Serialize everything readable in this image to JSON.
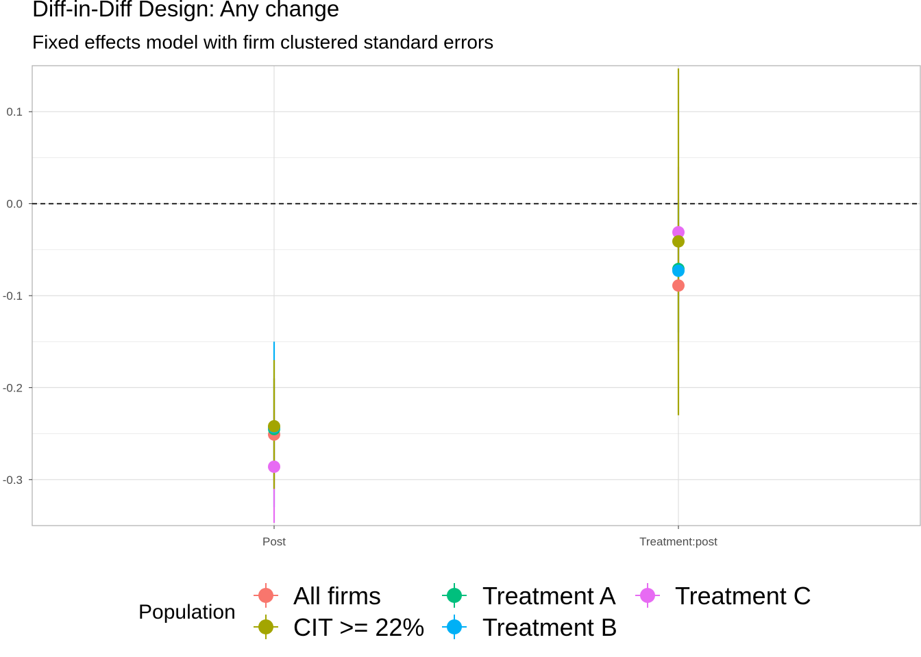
{
  "title": "Diff-in-Diff Design: Any change",
  "subtitle": "Fixed effects model with firm clustered standard errors",
  "chart_data": {
    "type": "scatter",
    "subtype": "coefficient-plot-with-error-bars",
    "categories": [
      "Post",
      "Treatment:post"
    ],
    "ylim": [
      -0.35,
      0.15
    ],
    "yticks": [
      -0.3,
      -0.2,
      -0.1,
      0.0,
      0.1
    ],
    "ytick_labels": [
      "-0.3",
      "-0.2",
      "-0.1",
      "0.0",
      "0.1"
    ],
    "reference_line": {
      "y": 0.0,
      "style": "dashed"
    },
    "grid": true,
    "legend": {
      "title": "Population",
      "position": "bottom"
    },
    "series": [
      {
        "name": "All firms",
        "color": "#F8766D",
        "estimates": [
          -0.251,
          -0.089
        ],
        "ci_low": [
          -0.31,
          -0.16
        ],
        "ci_high": [
          -0.19,
          -0.02
        ]
      },
      {
        "name": "CIT >= 22%",
        "color": "#A3A500",
        "estimates": [
          -0.242,
          -0.041
        ],
        "ci_low": [
          -0.31,
          -0.23
        ],
        "ci_high": [
          -0.17,
          0.147
        ]
      },
      {
        "name": "Treatment A",
        "color": "#00BF7D",
        "estimates": [
          -0.245,
          -0.071
        ],
        "ci_low": [
          -0.3,
          -0.14
        ],
        "ci_high": [
          -0.19,
          -0.002
        ]
      },
      {
        "name": "Treatment B",
        "color": "#00B0F6",
        "estimates": [
          -0.243,
          -0.073
        ],
        "ci_low": [
          -0.33,
          -0.15
        ],
        "ci_high": [
          -0.15,
          0.004
        ]
      },
      {
        "name": "Treatment C",
        "color": "#E76BF3",
        "estimates": [
          -0.286,
          -0.031
        ],
        "ci_low": [
          -0.347,
          -0.1
        ],
        "ci_high": [
          -0.225,
          0.04
        ]
      }
    ]
  }
}
